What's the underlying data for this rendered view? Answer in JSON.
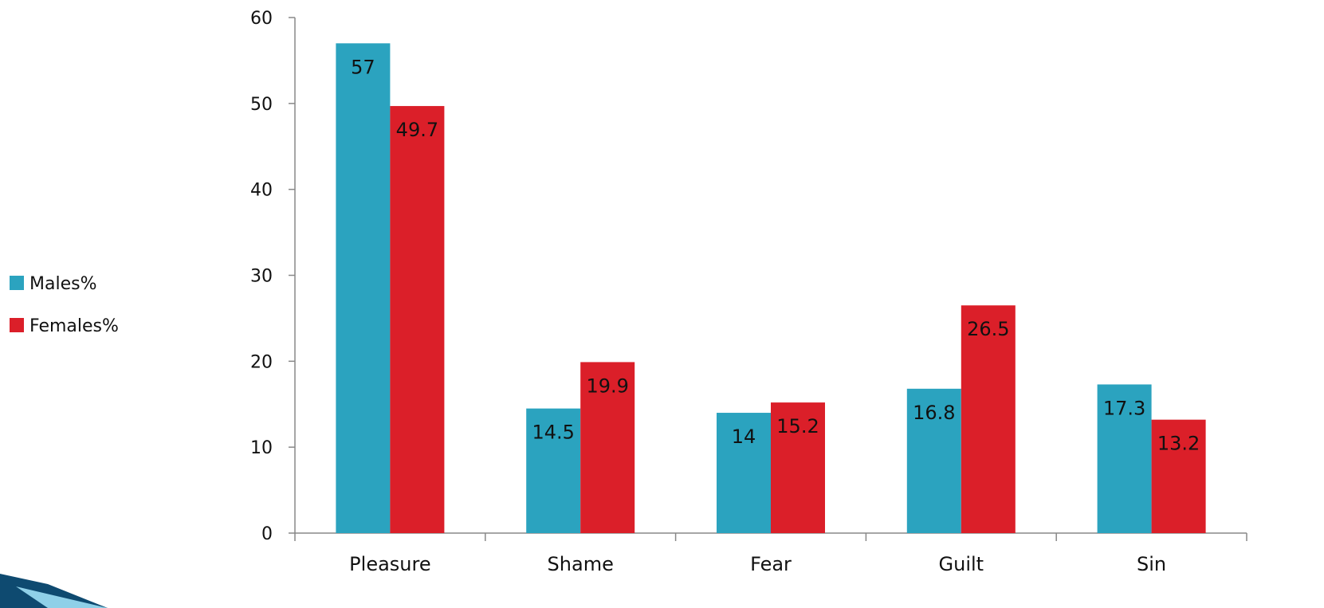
{
  "chart_data": {
    "type": "bar",
    "categories": [
      "Pleasure",
      "Shame",
      "Fear",
      "Guilt",
      "Sin"
    ],
    "series": [
      {
        "name": "Males%",
        "values": [
          57,
          14.5,
          14,
          16.8,
          17.3
        ],
        "color": "#2ba3bf"
      },
      {
        "name": "Females%",
        "values": [
          49.7,
          19.9,
          15.2,
          26.5,
          13.2
        ],
        "color": "#db1f29"
      }
    ],
    "title": "",
    "xlabel": "",
    "ylabel": "",
    "ylim": [
      0,
      60
    ],
    "yticks": [
      0,
      10,
      20,
      30,
      40,
      50,
      60
    ],
    "grid": false,
    "legend_position": "left",
    "data_labels": "inside-end",
    "axis_color": "#888888"
  }
}
